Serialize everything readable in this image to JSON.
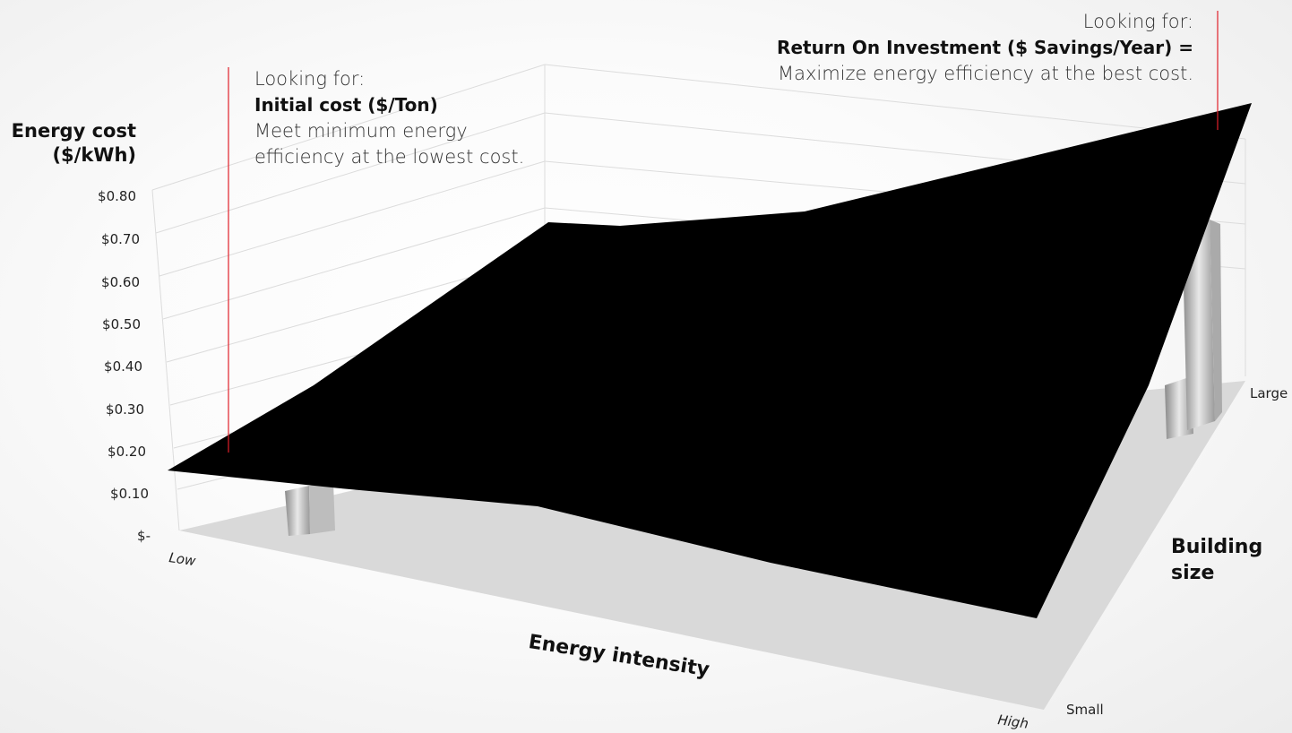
{
  "chart_data": {
    "type": "surface",
    "title": "",
    "ylabel_line1": "Energy cost",
    "ylabel_line2": "($/kWh)",
    "xlabel": "Energy intensity",
    "zlabel_line1": "Building",
    "zlabel_line2": "size",
    "y_ticks": [
      "$0.80",
      "$0.70",
      "$0.60",
      "$0.50",
      "$0.40",
      "$0.30",
      "$0.20",
      "$0.10",
      "$-"
    ],
    "y_range": [
      0,
      0.8
    ],
    "x_ticks": [
      "Low",
      "High"
    ],
    "z_ticks": [
      "Small",
      "Large"
    ],
    "grid": true,
    "surface_color": "#000000"
  },
  "annotations": {
    "left": {
      "intro": "Looking for:",
      "heading": "Initial cost ($/Ton)",
      "body": "Meet minimum energy efficiency at the lowest cost."
    },
    "right": {
      "intro": "Looking for:",
      "heading": "Return On Investment ($ Savings/Year) =",
      "body": "Maximize energy efficiency at the best cost."
    }
  },
  "colors": {
    "marker_line": "#e0202a",
    "floor": "#d9d9d9",
    "gridline": "#dcdcdc"
  }
}
